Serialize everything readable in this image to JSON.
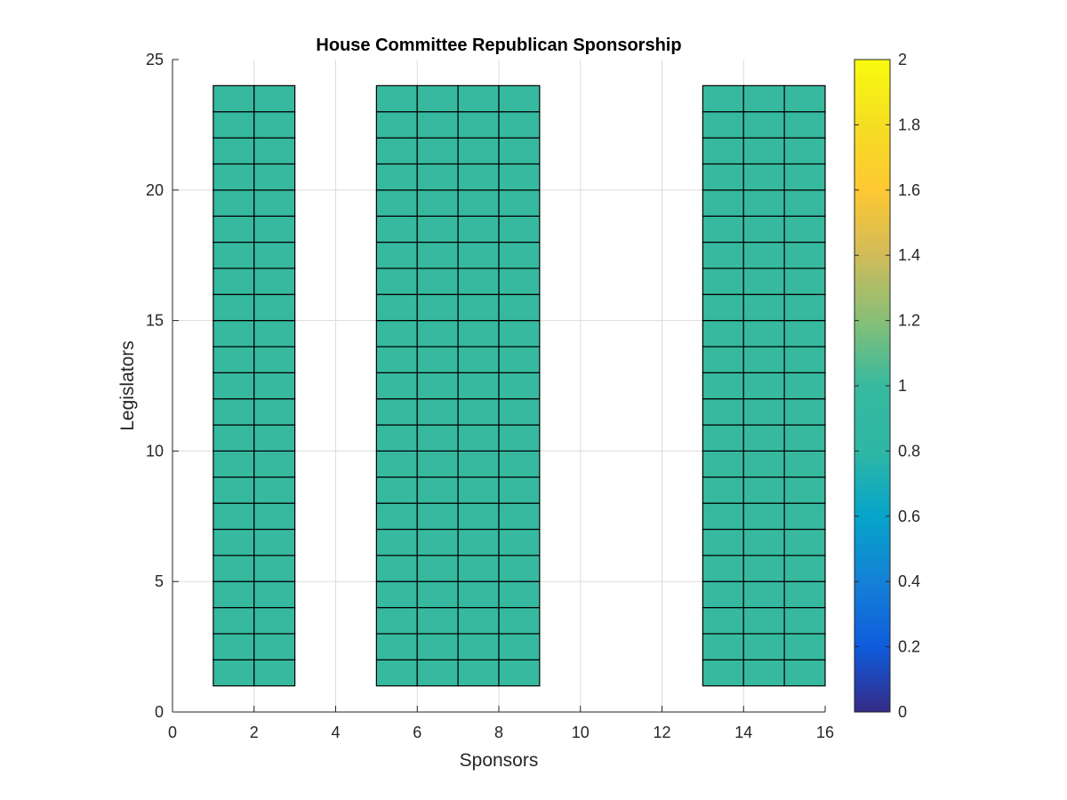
{
  "chart_data": {
    "type": "heatmap",
    "title": "House Committee Republican Sponsorship",
    "xlabel": "Sponsors",
    "ylabel": "Legislators",
    "xlim": [
      0,
      16
    ],
    "ylim": [
      0,
      25
    ],
    "xticks": [
      0,
      2,
      4,
      6,
      8,
      10,
      12,
      14,
      16
    ],
    "yticks": [
      0,
      5,
      10,
      15,
      20,
      25
    ],
    "grid": true,
    "colormap": "parula",
    "clim": [
      0,
      2
    ],
    "colorbar": {
      "position": "right",
      "ticks": [
        0,
        0.2,
        0.4,
        0.6,
        0.8,
        1,
        1.2,
        1.4,
        1.6,
        1.8,
        2
      ]
    },
    "cell_value": 1,
    "cell_color": "#36b99f",
    "edge_color": "#000000",
    "blocks": [
      {
        "x_start": 1,
        "x_end": 3,
        "y_start": 1,
        "y_end": 24
      },
      {
        "x_start": 5,
        "x_end": 9,
        "y_start": 1,
        "y_end": 24
      },
      {
        "x_start": 13,
        "x_end": 16,
        "y_start": 1,
        "y_end": 24
      }
    ]
  }
}
